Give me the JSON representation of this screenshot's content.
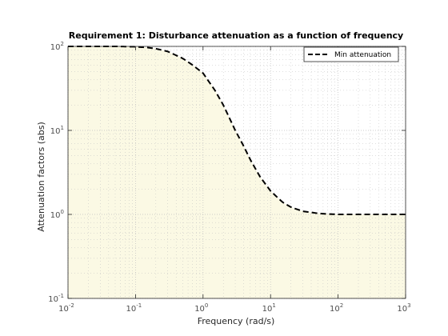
{
  "chart_data": {
    "type": "line",
    "title": "Requirement 1: Disturbance attenuation as a function of frequency",
    "xlabel": "Frequency (rad/s)",
    "ylabel": "Attenuation factors (abs)",
    "xscale": "log",
    "yscale": "log",
    "xlim": [
      0.01,
      1000
    ],
    "ylim": [
      0.1,
      100
    ],
    "x_ticks": [
      {
        "base": "10",
        "exp": "-2",
        "value": 0.01
      },
      {
        "base": "10",
        "exp": "-1",
        "value": 0.1
      },
      {
        "base": "10",
        "exp": "0",
        "value": 1
      },
      {
        "base": "10",
        "exp": "1",
        "value": 10
      },
      {
        "base": "10",
        "exp": "2",
        "value": 100
      },
      {
        "base": "10",
        "exp": "3",
        "value": 1000
      }
    ],
    "y_ticks": [
      {
        "base": "10",
        "exp": "-1",
        "value": 0.1
      },
      {
        "base": "10",
        "exp": "0",
        "value": 1
      },
      {
        "base": "10",
        "exp": "1",
        "value": 10
      },
      {
        "base": "10",
        "exp": "2",
        "value": 100
      }
    ],
    "grid": true,
    "legend_position": "top-right",
    "shaded_region": {
      "color": "#fbf9e4",
      "description_bound": "below curve"
    },
    "series": [
      {
        "name": "Min attenuation",
        "style": "dashed",
        "color": "#000000",
        "x": [
          0.01,
          0.05,
          0.1,
          0.15,
          0.2,
          0.3,
          0.5,
          0.7,
          1,
          1.5,
          2,
          3,
          4,
          5,
          7,
          10,
          15,
          20,
          30,
          50,
          70,
          100,
          200,
          500,
          1000
        ],
        "y": [
          100,
          100,
          99,
          97,
          94,
          87,
          72,
          60,
          48,
          30,
          20,
          10,
          6.5,
          4.5,
          2.8,
          1.9,
          1.4,
          1.22,
          1.09,
          1.03,
          1.01,
          1.0,
          1.0,
          1.0,
          1.0
        ]
      }
    ]
  },
  "colors": {
    "plot_background": "#ffffff",
    "shade_fill": "#fbf9e4",
    "grid_color": "#bfbfbf",
    "axis_color": "#262626"
  }
}
